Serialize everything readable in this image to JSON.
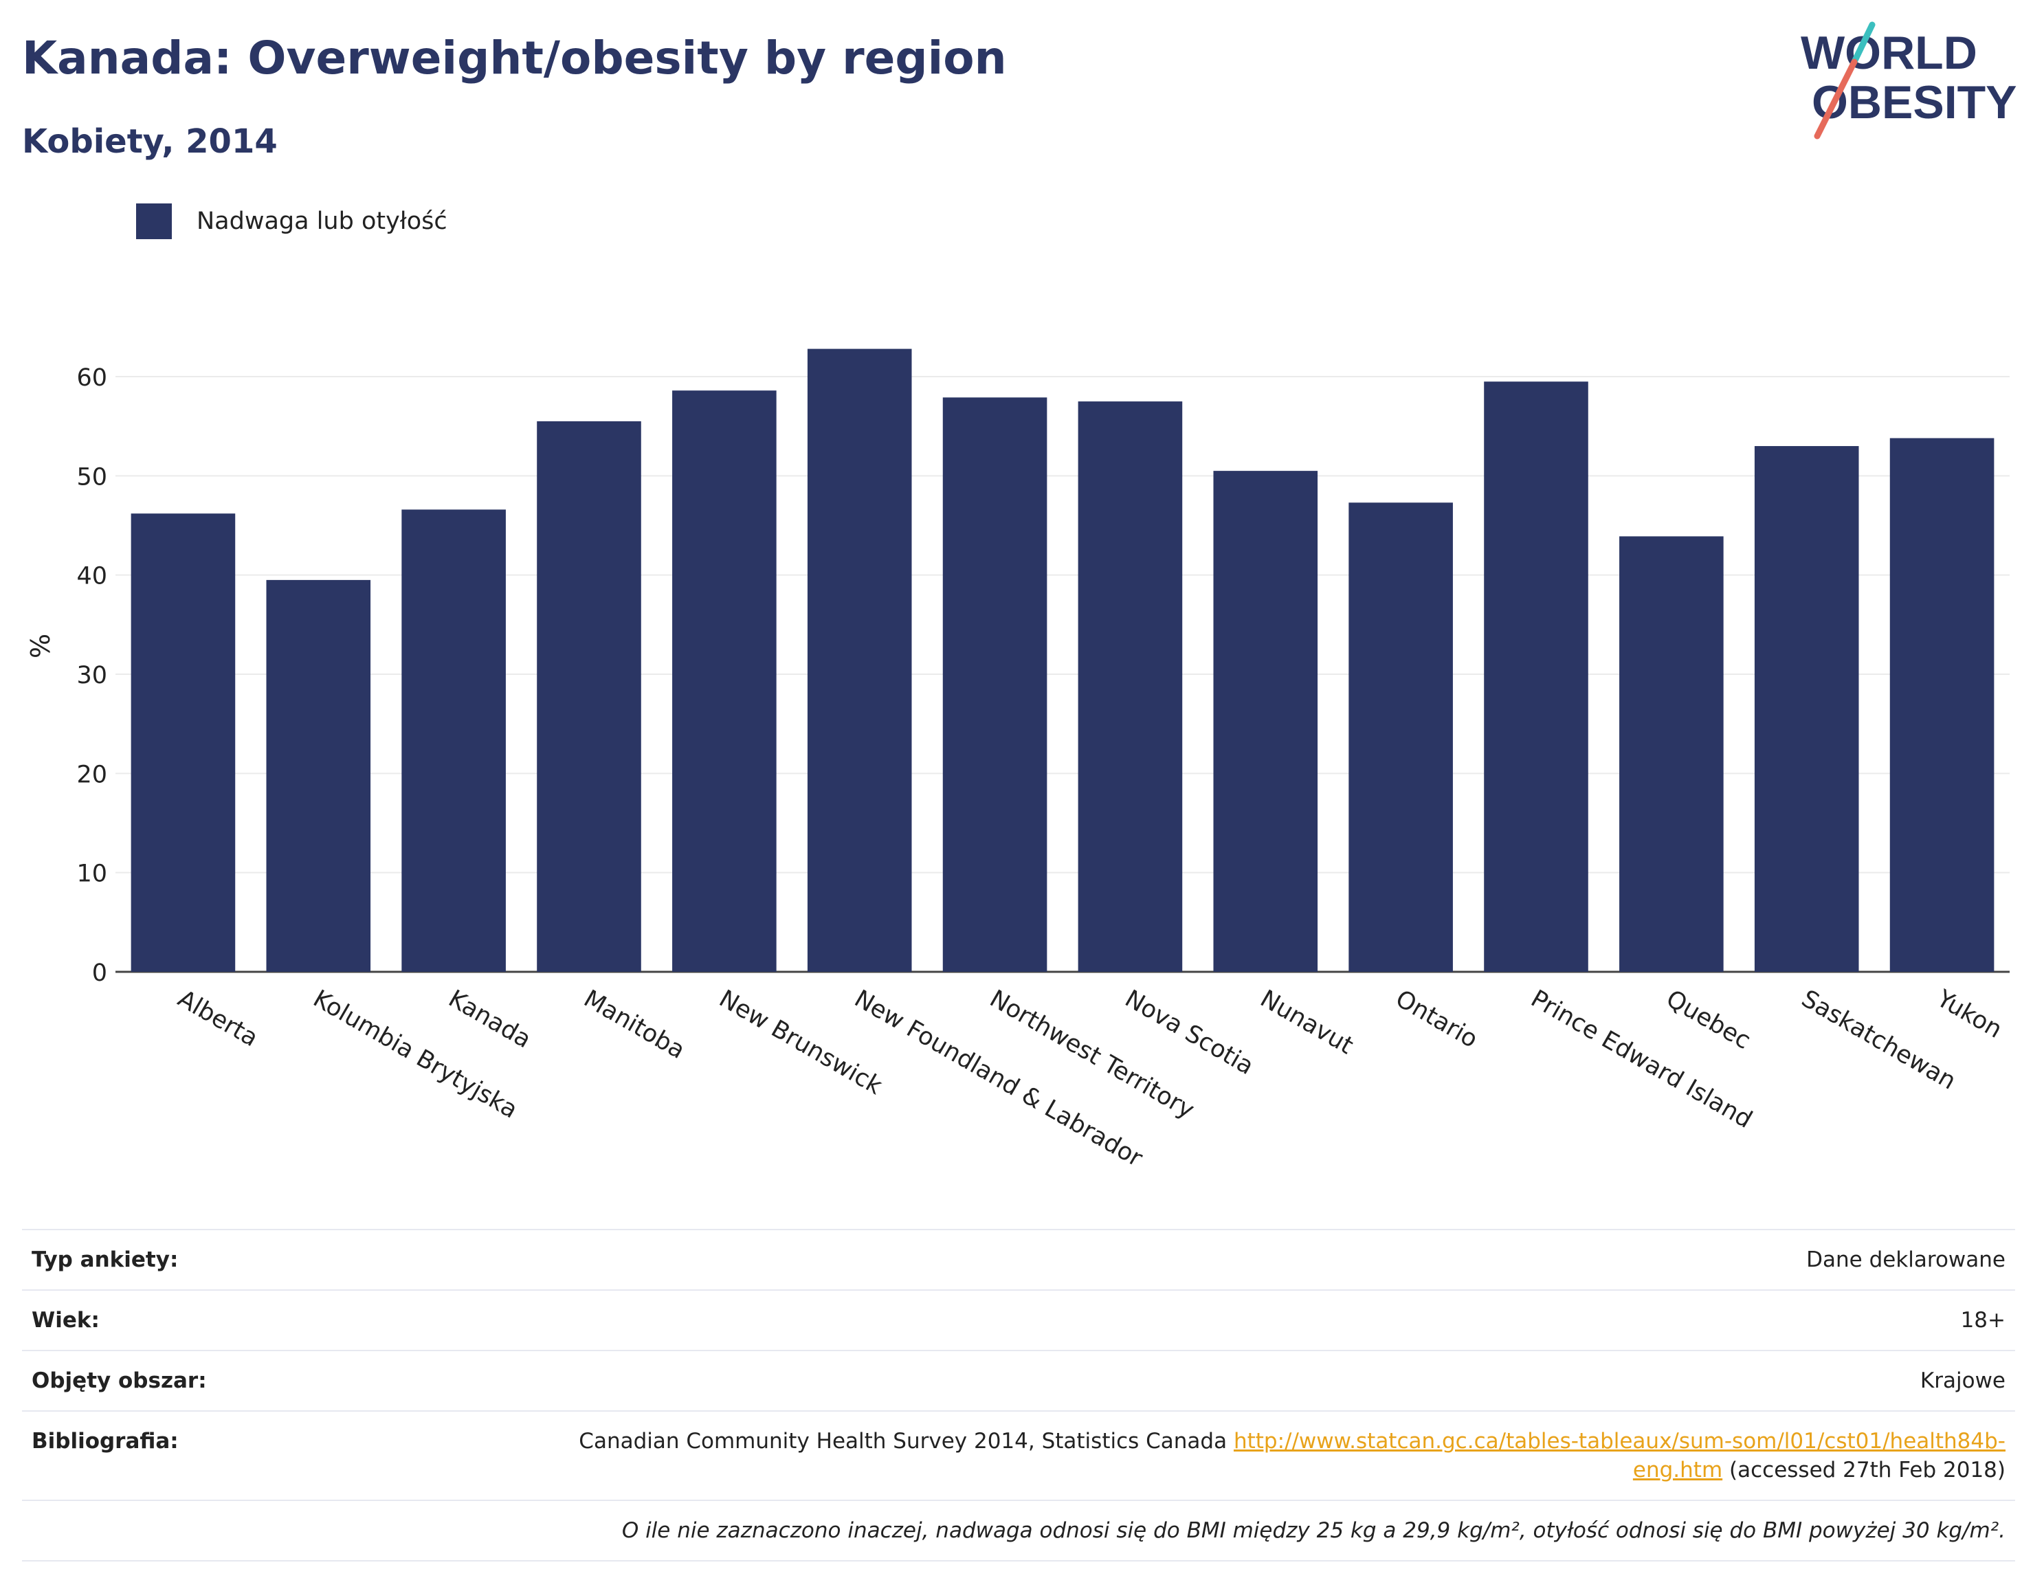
{
  "header": {
    "title": "Kanada: Overweight/obesity by region",
    "subtitle": "Kobiety, 2014",
    "logo_line1": "WORLD",
    "logo_line2": "OBESITY"
  },
  "colors": {
    "bar": "#2b3664",
    "title": "#2b3664",
    "link": "#e8a21a",
    "logo_teal": "#3bbfbf",
    "logo_coral": "#e66a5a"
  },
  "chart_data": {
    "type": "bar",
    "title": "Kanada: Overweight/obesity by region",
    "subtitle": "Kobiety, 2014",
    "xlabel": "",
    "ylabel": "%",
    "ylim": [
      0,
      65
    ],
    "yticks": [
      0,
      10,
      20,
      30,
      40,
      50,
      60
    ],
    "grid": true,
    "legend_position": "top-left",
    "categories": [
      "Alberta",
      "Kolumbia Brytyjska",
      "Kanada",
      "Manitoba",
      "New Brunswick",
      "New Foundland & Labrador",
      "Northwest Territory",
      "Nova Scotia",
      "Nunavut",
      "Ontario",
      "Prince Edward Island",
      "Quebec",
      "Saskatchewan",
      "Yukon"
    ],
    "series": [
      {
        "name": "Nadwaga lub otyłość",
        "values": [
          46.2,
          39.5,
          46.6,
          55.5,
          58.6,
          62.8,
          57.9,
          57.5,
          50.5,
          47.3,
          59.5,
          43.9,
          53.0,
          53.8
        ]
      }
    ]
  },
  "info": {
    "survey_type_label": "Typ ankiety:",
    "survey_type_value": "Dane deklarowane",
    "age_label": "Wiek:",
    "age_value": "18+",
    "area_label": "Objęty obszar:",
    "area_value": "Krajowe",
    "bibliography_label": "Bibliografia:",
    "bibliography_text": "Canadian Community Health Survey 2014, Statistics Canada ",
    "bibliography_link": "http://www.statcan.gc.ca/tables-tableaux/sum-som/l01/cst01/health84b-eng.htm",
    "bibliography_suffix": " (accessed 27th Feb 2018)",
    "note": "O ile nie zaznaczono inaczej, nadwaga odnosi się do BMI między 25 kg a 29,9 kg/m², otyłość odnosi się do BMI powyżej 30 kg/m²."
  }
}
